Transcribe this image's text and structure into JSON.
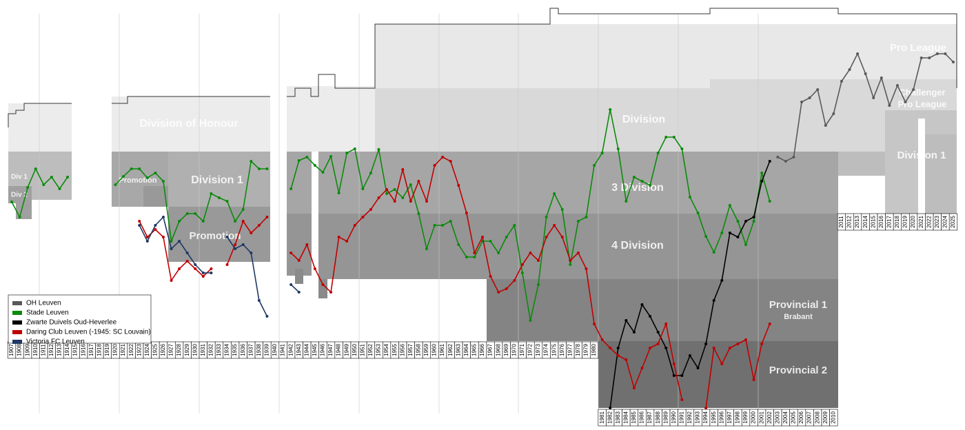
{
  "chart_data": {
    "type": "line",
    "x": [
      1907,
      1908,
      1909,
      1910,
      1911,
      1912,
      1913,
      1914,
      1915,
      1916,
      1917,
      1918,
      1919,
      1920,
      1921,
      1922,
      1923,
      1924,
      1925,
      1926,
      1927,
      1928,
      1929,
      1930,
      1931,
      1932,
      1933,
      1934,
      1935,
      1936,
      1937,
      1938,
      1939,
      1940,
      1941,
      1942,
      1943,
      1944,
      1945,
      1946,
      1947,
      1948,
      1949,
      1950,
      1951,
      1952,
      1953,
      1954,
      1955,
      1956,
      1957,
      1958,
      1959,
      1960,
      1961,
      1962,
      1963,
      1964,
      1965,
      1966,
      1967,
      1968,
      1969,
      1970,
      1971,
      1972,
      1973,
      1974,
      1975,
      1976,
      1977,
      1978,
      1979,
      1980,
      1981,
      1982,
      1983,
      1984,
      1985,
      1986,
      1987,
      1988,
      1989,
      1990,
      1991,
      1992,
      1993,
      1994,
      1995,
      1996,
      1997,
      1998,
      1999,
      2000,
      2001,
      2002,
      2003,
      2004,
      2005,
      2006,
      2007,
      2008,
      2009,
      2010,
      2011,
      2012,
      2013,
      2014,
      2015,
      2016,
      2017,
      2018,
      2019,
      2020,
      2021,
      2022,
      2023,
      2024,
      2025
    ],
    "xlim": [
      1907,
      2025
    ],
    "ylim": [
      610,
      10
    ],
    "legend": "lower left",
    "divisions": [
      "Division of Honour",
      "Division 1",
      "Promotion",
      "Div 1",
      "Div 2",
      "Promotion",
      "Division",
      "3 Division",
      "4 Division",
      "Provincial 1",
      "Brabant",
      "Provincial 2",
      "Pro League",
      "Challenger",
      "Pro League",
      "Division 1"
    ],
    "series": [
      {
        "name": "OH Leuven",
        "color": "#595959",
        "values": [
          null,
          null,
          null,
          null,
          null,
          null,
          null,
          null,
          null,
          null,
          null,
          null,
          null,
          null,
          null,
          null,
          null,
          null,
          null,
          null,
          null,
          null,
          null,
          null,
          null,
          null,
          null,
          null,
          null,
          null,
          null,
          null,
          null,
          null,
          null,
          null,
          null,
          null,
          null,
          null,
          null,
          null,
          null,
          null,
          null,
          null,
          null,
          null,
          null,
          null,
          null,
          null,
          null,
          null,
          null,
          null,
          null,
          null,
          null,
          null,
          null,
          null,
          null,
          null,
          null,
          null,
          null,
          null,
          null,
          null,
          null,
          null,
          null,
          null,
          null,
          null,
          null,
          null,
          null,
          null,
          null,
          null,
          null,
          null,
          null,
          null,
          null,
          null,
          null,
          null,
          null,
          null,
          null,
          null,
          null,
          null,
          228,
          234,
          228,
          148,
          142,
          130,
          182,
          165,
          118,
          101,
          78,
          107,
          142,
          113,
          153,
          124,
          148,
          130,
          84,
          84,
          78,
          78,
          90
        ]
      },
      {
        "name": "Stade Leuven",
        "color": "#0b8a0b",
        "values": [
          293,
          315,
          272,
          245,
          268,
          257,
          274,
          257,
          null,
          null,
          null,
          null,
          null,
          268,
          256,
          245,
          245,
          258,
          251,
          263,
          350,
          321,
          310,
          310,
          321,
          281,
          287,
          292,
          321,
          304,
          234,
          245,
          245,
          null,
          null,
          274,
          233,
          228,
          240,
          250,
          227,
          280,
          222,
          216,
          274,
          251,
          217,
          281,
          275,
          287,
          268,
          310,
          361,
          327,
          327,
          321,
          355,
          373,
          373,
          350,
          350,
          367,
          344,
          327,
          396,
          465,
          413,
          315,
          281,
          304,
          384,
          321,
          315,
          240,
          222,
          159,
          216,
          292,
          257,
          263,
          269,
          222,
          199,
          199,
          216,
          286,
          309,
          343,
          366,
          338,
          298,
          321,
          355,
          321,
          251,
          292,
          null,
          null,
          null,
          null,
          null,
          null,
          null,
          null,
          null,
          null,
          null,
          null,
          null,
          null,
          null,
          null,
          null,
          null,
          null,
          null,
          null,
          null,
          null
        ]
      },
      {
        "name": "Zwarte Duivels Oud-Heverlee",
        "color": "#000000",
        "values": [
          null,
          null,
          null,
          null,
          null,
          null,
          null,
          null,
          null,
          null,
          null,
          null,
          null,
          null,
          null,
          null,
          null,
          null,
          null,
          null,
          null,
          null,
          null,
          null,
          null,
          null,
          null,
          null,
          null,
          null,
          null,
          null,
          null,
          null,
          null,
          null,
          null,
          null,
          null,
          null,
          null,
          null,
          null,
          null,
          null,
          null,
          null,
          null,
          null,
          null,
          null,
          null,
          null,
          null,
          null,
          null,
          null,
          null,
          null,
          null,
          null,
          null,
          null,
          null,
          null,
          null,
          null,
          null,
          null,
          null,
          null,
          null,
          null,
          null,
          null,
          592,
          505,
          465,
          482,
          442,
          459,
          482,
          505,
          545,
          545,
          516,
          534,
          499,
          436,
          407,
          338,
          344,
          321,
          315,
          263,
          234,
          null,
          null,
          null,
          null,
          null,
          null,
          null,
          null,
          null,
          null,
          null,
          null,
          null,
          null,
          null,
          null,
          null,
          null,
          null,
          null,
          null,
          null,
          null
        ]
      },
      {
        "name": "Daring Club Leuven (-1945: SC Louvain)",
        "color": "#c00000",
        "values": [
          null,
          null,
          null,
          null,
          null,
          null,
          null,
          null,
          null,
          null,
          null,
          null,
          null,
          null,
          null,
          null,
          321,
          344,
          333,
          344,
          407,
          390,
          379,
          390,
          401,
          390,
          null,
          384,
          355,
          321,
          338,
          327,
          315,
          null,
          null,
          367,
          378,
          355,
          390,
          413,
          424,
          344,
          350,
          327,
          315,
          304,
          287,
          275,
          292,
          246,
          292,
          263,
          292,
          240,
          228,
          234,
          269,
          309,
          367,
          344,
          401,
          424,
          419,
          407,
          384,
          367,
          378,
          344,
          327,
          344,
          378,
          367,
          390,
          470,
          493,
          505,
          516,
          522,
          563,
          534,
          505,
          499,
          470,
          528,
          580,
          null,
          null,
          592,
          505,
          528,
          505,
          499,
          493,
          551,
          499,
          470,
          null,
          null,
          null,
          null,
          null,
          null,
          null,
          null,
          null,
          null,
          null,
          null,
          null,
          null,
          null,
          null,
          null,
          null,
          null,
          null,
          null,
          null,
          null
        ]
      },
      {
        "name": "Victoria FC Leuven",
        "color": "#1f3864",
        "values": [
          null,
          null,
          null,
          null,
          null,
          null,
          null,
          null,
          null,
          null,
          null,
          null,
          null,
          null,
          null,
          null,
          327,
          350,
          327,
          315,
          361,
          350,
          367,
          384,
          396,
          396,
          null,
          344,
          361,
          355,
          367,
          436,
          459,
          null,
          null,
          413,
          424,
          null,
          null,
          null,
          null,
          null,
          null,
          null,
          null,
          null,
          null,
          null,
          null,
          null,
          null,
          null,
          null,
          null,
          null,
          null,
          null,
          null,
          null,
          null,
          null,
          null,
          null,
          null,
          null,
          null,
          null,
          null,
          null,
          null,
          null,
          null,
          null,
          null,
          null,
          null,
          null,
          null,
          null,
          null,
          null,
          null,
          null,
          null,
          null,
          null,
          null,
          null,
          null,
          null,
          null,
          null,
          null,
          null,
          null,
          null,
          null,
          null,
          null,
          null,
          null,
          null,
          null,
          null,
          null,
          null,
          null,
          null,
          null,
          null,
          null,
          null,
          null,
          null,
          null,
          null,
          null,
          null,
          null
        ]
      }
    ]
  }
}
